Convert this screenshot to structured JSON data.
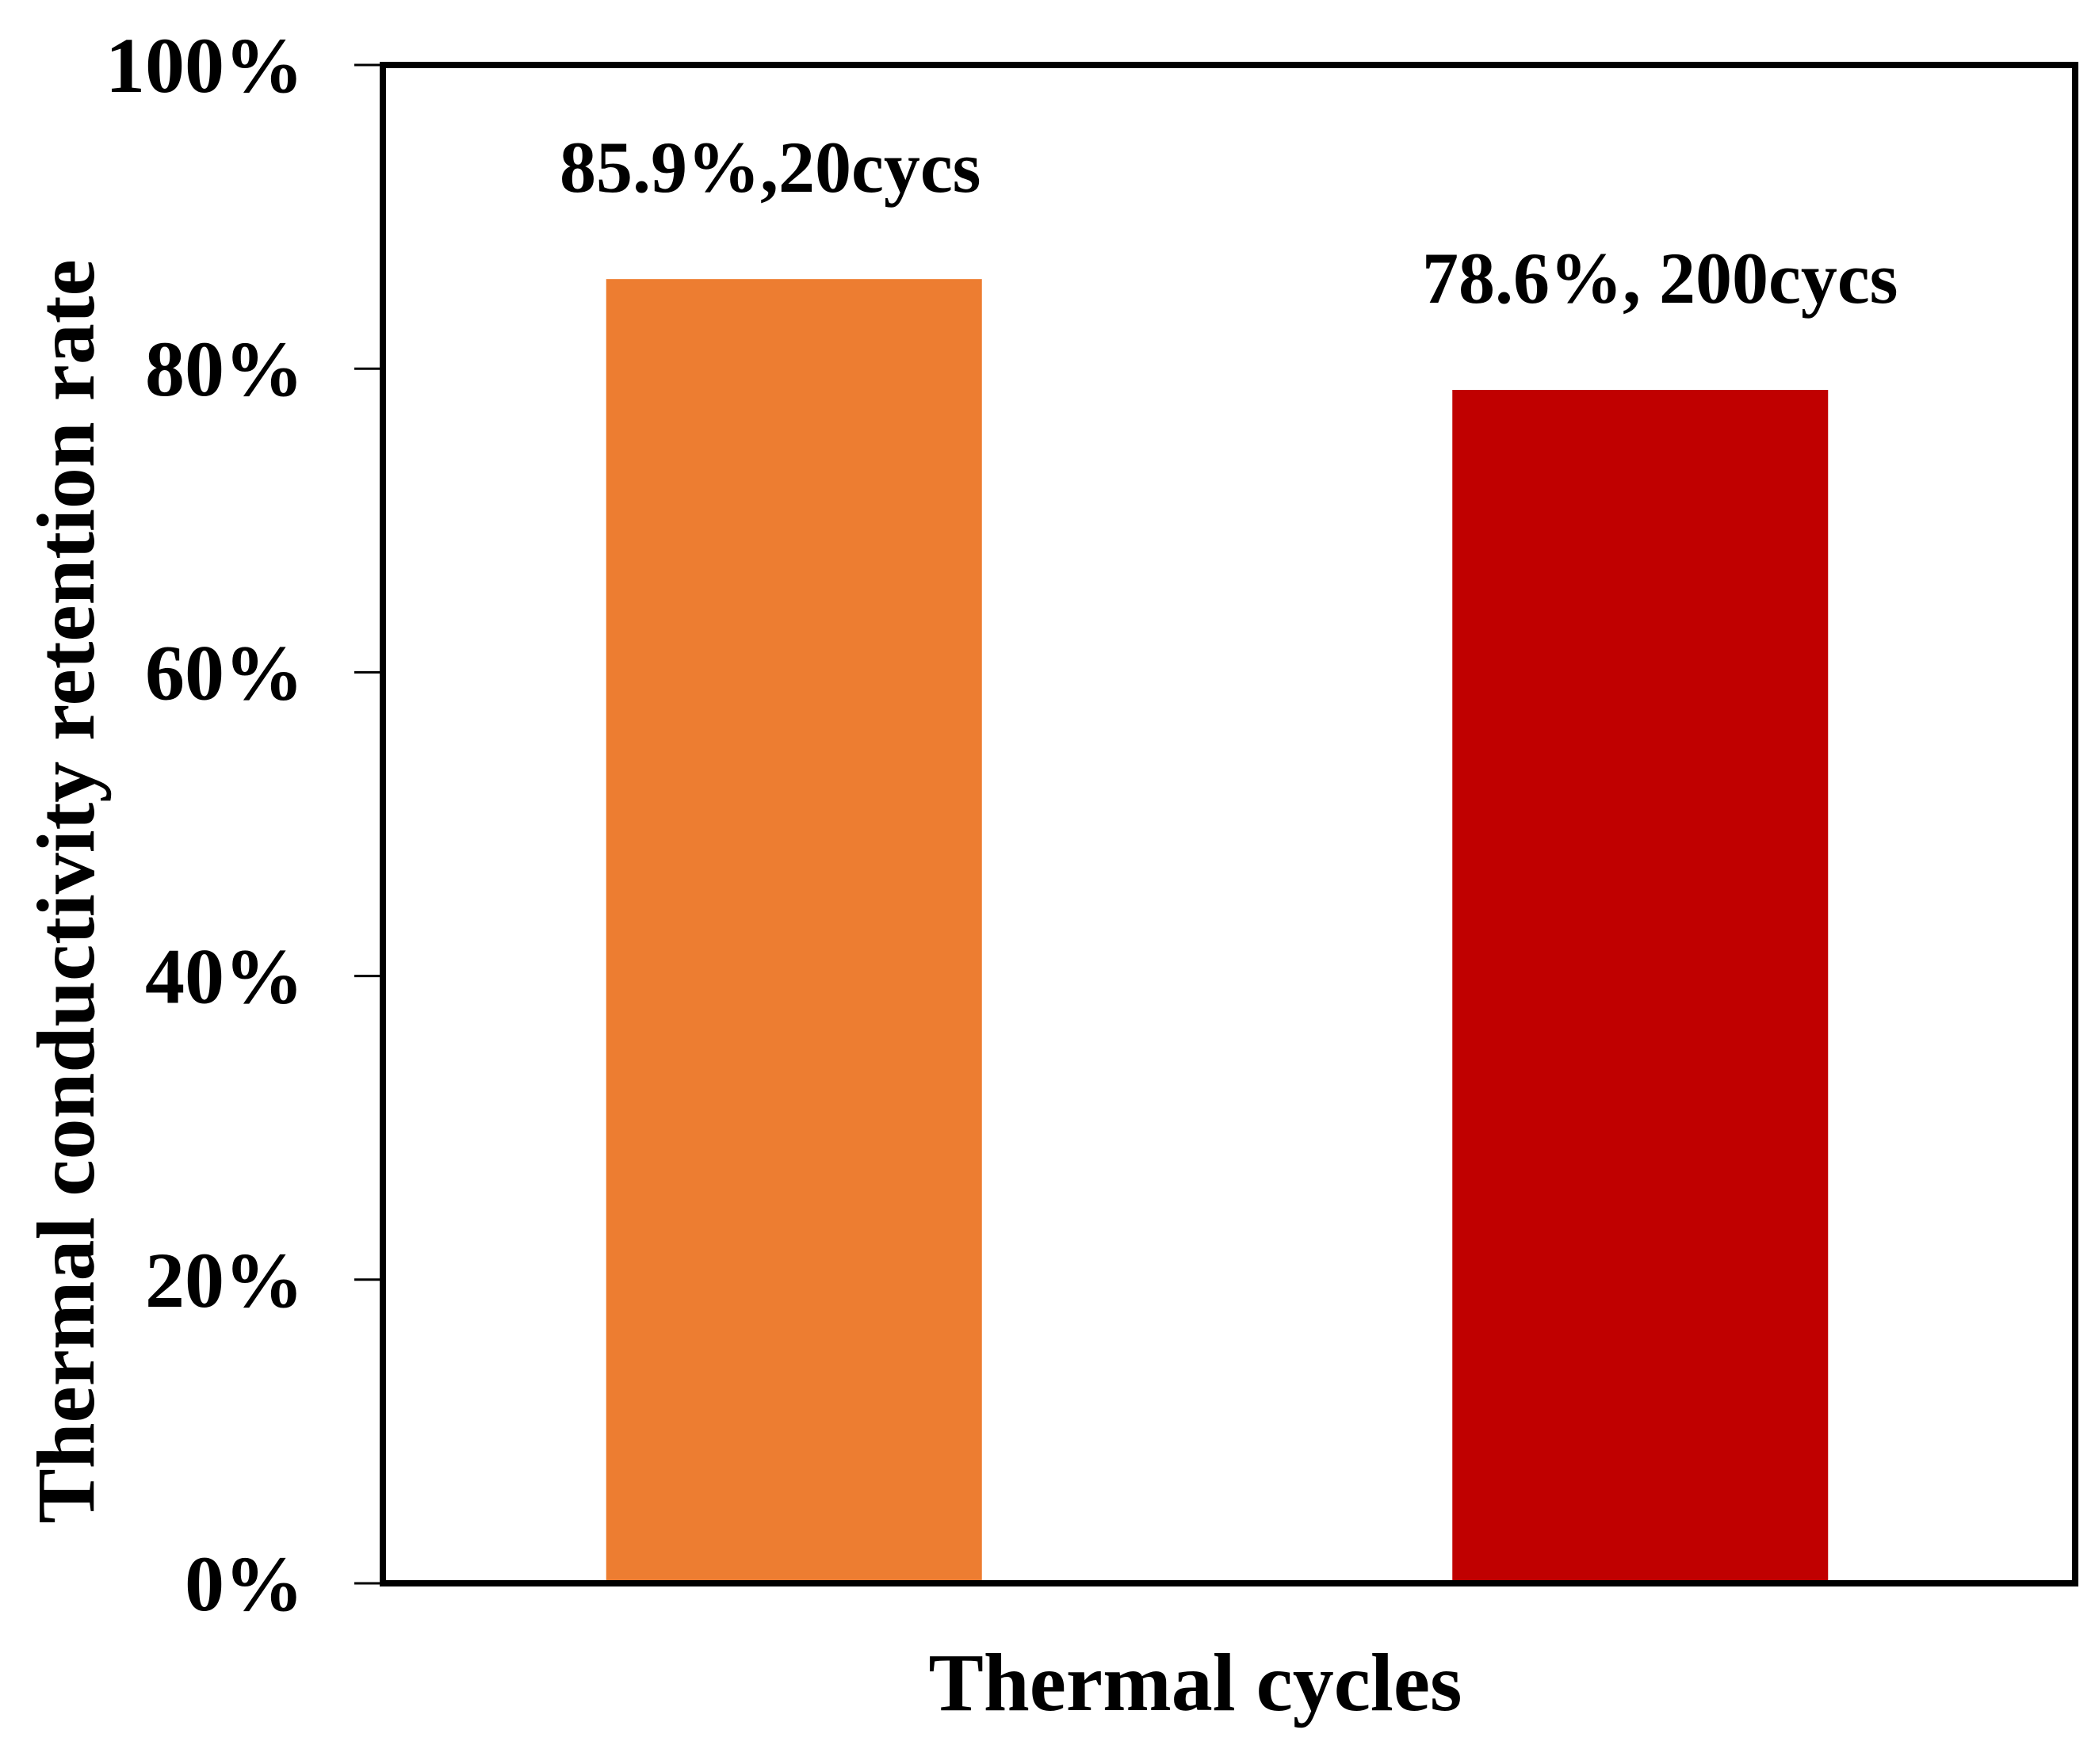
{
  "chart_data": {
    "type": "bar",
    "xlabel": "Thermal cycles",
    "ylabel": "Thermal conductivity retention rate",
    "ylim": [
      0,
      100
    ],
    "yticks": [
      {
        "value": 0,
        "label": "0%"
      },
      {
        "value": 20,
        "label": "20%"
      },
      {
        "value": 40,
        "label": "40%"
      },
      {
        "value": 60,
        "label": "60%"
      },
      {
        "value": 80,
        "label": "80%"
      },
      {
        "value": 100,
        "label": "100%"
      }
    ],
    "bars": [
      {
        "name": "20 cycles",
        "value": 85.9,
        "label": "85.9%,20cycs",
        "color": "#ED7D31"
      },
      {
        "name": "200 cycles",
        "value": 78.6,
        "label": "78.6%, 200cycs",
        "color": "#C00000"
      }
    ],
    "grid": false,
    "legend": "none"
  }
}
